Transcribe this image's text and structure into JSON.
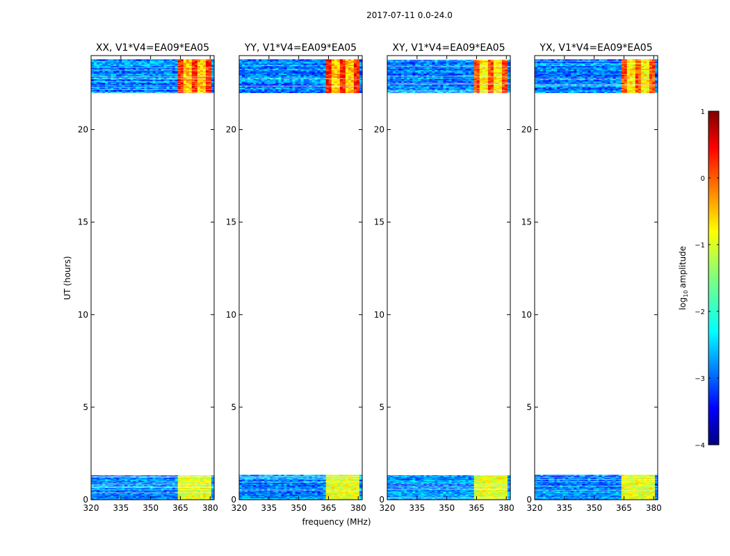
{
  "figure_title": "2017-07-11 0.0-24.0",
  "chart_data": {
    "type": "heatmap",
    "title": "2017-07-11 0.0-24.0",
    "xlabel": "frequency (MHz)",
    "ylabel": "UT (hours)",
    "xlim": [
      320,
      382
    ],
    "ylim": [
      0,
      24
    ],
    "xticks": [
      320,
      335,
      350,
      365,
      380
    ],
    "yticks": [
      0,
      5,
      10,
      15,
      20
    ],
    "panels": [
      {
        "title": "XX, V1*V4=EA09*EA05",
        "polarization": "XX"
      },
      {
        "title": "YY, V1*V4=EA09*EA05",
        "polarization": "YY"
      },
      {
        "title": "XY, V1*V4=EA09*EA05",
        "polarization": "XY"
      },
      {
        "title": "YX, V1*V4=EA09*EA05",
        "polarization": "YX"
      }
    ],
    "data_ranges_ut_hours": [
      [
        0.0,
        1.35
      ],
      [
        22.0,
        23.8
      ]
    ],
    "rfi_band_mhz": [
      363,
      380
    ],
    "colorbar": {
      "label": "log10 amplitude",
      "label_base": "log",
      "label_sub": "10",
      "label_rest": "amplitude",
      "range": [
        -4,
        1
      ],
      "ticks": [
        "1",
        "0",
        "−1",
        "−2",
        "−3",
        "−4"
      ],
      "tick_values": [
        1,
        0,
        -1,
        -2,
        -3,
        -4
      ]
    }
  },
  "colors": {
    "jet_low": "#00007f",
    "jet_high": "#7f0000",
    "axis": "#000000",
    "background": "#ffffff"
  }
}
